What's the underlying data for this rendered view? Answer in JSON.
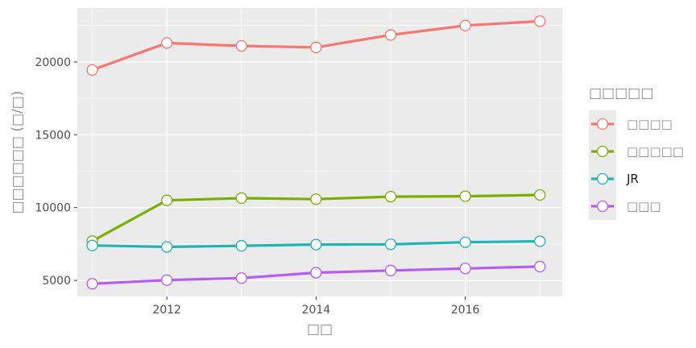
{
  "chart_data": {
    "type": "line",
    "title": "",
    "xlabel": "□□",
    "ylabel": "□□□□□□ (□/□)",
    "x": [
      2011,
      2012,
      2013,
      2014,
      2015,
      2016,
      2017
    ],
    "xlim": [
      2010.8,
      2017.3
    ],
    "ylim": [
      3900,
      23700
    ],
    "x_ticks": [
      "2012",
      "2014",
      "2016"
    ],
    "y_ticks": [
      "5000",
      "10000",
      "15000",
      "20000"
    ],
    "grid": true,
    "legend": {
      "title": "□□□□□",
      "position": "right"
    },
    "series": [
      {
        "name": "□□□□",
        "color": "#F8766D",
        "values": [
          19450,
          21300,
          21100,
          21000,
          21850,
          22500,
          22800
        ]
      },
      {
        "name": "□□□□□",
        "color": "#7CAE00",
        "values": [
          7700,
          10500,
          10650,
          10580,
          10750,
          10780,
          10870
        ]
      },
      {
        "name": "JR",
        "color": "#1FB5B5",
        "values": [
          7400,
          7300,
          7380,
          7460,
          7480,
          7620,
          7690
        ]
      },
      {
        "name": "□□□",
        "color": "#B65CF4",
        "values": [
          4770,
          5020,
          5160,
          5530,
          5680,
          5820,
          5950
        ]
      }
    ]
  }
}
